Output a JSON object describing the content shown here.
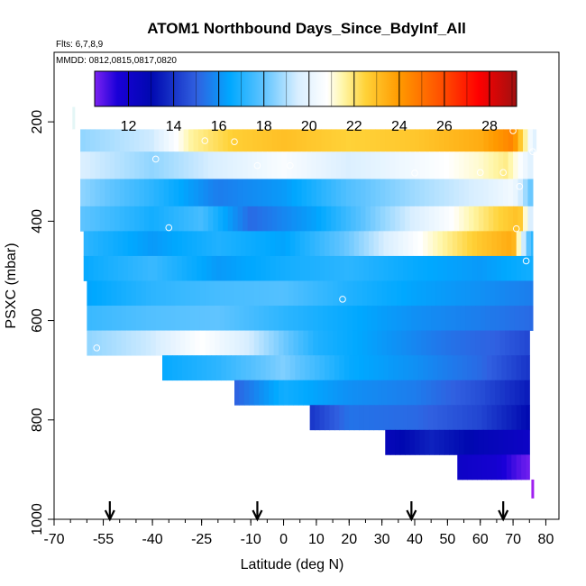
{
  "chart_data": {
    "type": "heatmap",
    "title": "ATOM1 Northbound Days_Since_BdyInf_All",
    "flights_note": "Flts: 6,7,8,9",
    "dates_note": "MMDD: 0812,0815,0817,0820",
    "xlabel": "Latitude (deg N)",
    "ylabel": "PSXC (mbar)",
    "xlim": [
      -70,
      84
    ],
    "ylim": [
      1000,
      60
    ],
    "x_ticks": [
      -70,
      -55,
      -40,
      -25,
      -10,
      0,
      10,
      20,
      30,
      40,
      50,
      60,
      70,
      80
    ],
    "x_tick_labels": [
      "-70",
      "-55",
      "-40",
      "-25",
      "-10",
      "0",
      "10",
      "20",
      "30",
      "40",
      "50",
      "60",
      "70",
      "80"
    ],
    "y_ticks": [
      200,
      400,
      600,
      800,
      1000
    ],
    "y_tick_labels": [
      "200",
      "400",
      "600",
      "800",
      "1000"
    ],
    "colorbar": {
      "min": 10.5,
      "max": 29.2,
      "ticks": [
        12,
        14,
        16,
        18,
        20,
        22,
        24,
        26,
        28
      ],
      "tick_labels": [
        "12",
        "14",
        "16",
        "18",
        "20",
        "22",
        "24",
        "26",
        "28"
      ],
      "stops": [
        {
          "value": 10.5,
          "color": "#7c22f2"
        },
        {
          "value": 11.5,
          "color": "#1a00d8"
        },
        {
          "value": 13.0,
          "color": "#0008b0"
        },
        {
          "value": 15.0,
          "color": "#3060e0"
        },
        {
          "value": 16.5,
          "color": "#00a8ff"
        },
        {
          "value": 18.0,
          "color": "#60c4ff"
        },
        {
          "value": 19.5,
          "color": "#d8eeff"
        },
        {
          "value": 20.8,
          "color": "#ffffff"
        },
        {
          "value": 21.5,
          "color": "#fff6a8"
        },
        {
          "value": 22.5,
          "color": "#ffd238"
        },
        {
          "value": 24.0,
          "color": "#ff9a00"
        },
        {
          "value": 26.0,
          "color": "#ff4a00"
        },
        {
          "value": 27.5,
          "color": "#ff0000"
        },
        {
          "value": 29.2,
          "color": "#a01010"
        }
      ]
    },
    "pressure_levels": [
      {
        "p_top": 215,
        "p_bottom": 260,
        "lat_start": -62,
        "lat_end": 77,
        "knots": [
          [
            -62,
            18.6
          ],
          [
            -40,
            19.4
          ],
          [
            -28,
            21.6
          ],
          [
            -15,
            22.6
          ],
          [
            0,
            23.0
          ],
          [
            20,
            22.5
          ],
          [
            40,
            22.8
          ],
          [
            60,
            23.5
          ],
          [
            70,
            24.6
          ],
          [
            76,
            19.8
          ]
        ]
      },
      {
        "p_top": 260,
        "p_bottom": 315,
        "lat_start": -62,
        "lat_end": 76,
        "knots": [
          [
            -62,
            19.6
          ],
          [
            -40,
            18.6
          ],
          [
            -20,
            19.6
          ],
          [
            0,
            20.6
          ],
          [
            20,
            19.6
          ],
          [
            40,
            20.4
          ],
          [
            60,
            21.2
          ],
          [
            68,
            21.8
          ],
          [
            76,
            19.6
          ]
        ]
      },
      {
        "p_top": 315,
        "p_bottom": 370,
        "lat_start": -62,
        "lat_end": 76,
        "knots": [
          [
            -62,
            18.6
          ],
          [
            -40,
            17.2
          ],
          [
            -20,
            15.6
          ],
          [
            0,
            16.2
          ],
          [
            20,
            17.8
          ],
          [
            40,
            18.8
          ],
          [
            60,
            19.6
          ],
          [
            70,
            20.4
          ],
          [
            76,
            17.8
          ]
        ]
      },
      {
        "p_top": 370,
        "p_bottom": 420,
        "lat_start": -62,
        "lat_end": 76,
        "knots": [
          [
            -62,
            18.0
          ],
          [
            -40,
            16.8
          ],
          [
            -25,
            17.6
          ],
          [
            -10,
            15.2
          ],
          [
            10,
            16.4
          ],
          [
            30,
            18.6
          ],
          [
            50,
            20.6
          ],
          [
            65,
            22.4
          ],
          [
            72,
            23.0
          ],
          [
            76,
            18.8
          ]
        ]
      },
      {
        "p_top": 420,
        "p_bottom": 470,
        "lat_start": -61,
        "lat_end": 76,
        "knots": [
          [
            -61,
            17.2
          ],
          [
            -40,
            16.2
          ],
          [
            -20,
            17.0
          ],
          [
            0,
            16.4
          ],
          [
            20,
            18.2
          ],
          [
            40,
            20.6
          ],
          [
            60,
            22.8
          ],
          [
            70,
            23.6
          ],
          [
            74,
            18.4
          ],
          [
            76,
            17.0
          ]
        ]
      },
      {
        "p_top": 470,
        "p_bottom": 520,
        "lat_start": -61,
        "lat_end": 76,
        "knots": [
          [
            -61,
            16.6
          ],
          [
            -40,
            17.4
          ],
          [
            -20,
            16.2
          ],
          [
            0,
            16.8
          ],
          [
            20,
            17.2
          ],
          [
            40,
            16.6
          ],
          [
            60,
            16.2
          ],
          [
            76,
            16.8
          ]
        ]
      },
      {
        "p_top": 520,
        "p_bottom": 570,
        "lat_start": -60,
        "lat_end": 76,
        "knots": [
          [
            -60,
            16.4
          ],
          [
            -40,
            17.2
          ],
          [
            -20,
            17.6
          ],
          [
            0,
            17.8
          ],
          [
            20,
            17.0
          ],
          [
            40,
            16.4
          ],
          [
            60,
            16.0
          ],
          [
            76,
            15.6
          ]
        ]
      },
      {
        "p_top": 570,
        "p_bottom": 620,
        "lat_start": -60,
        "lat_end": 76,
        "knots": [
          [
            -60,
            17.4
          ],
          [
            -40,
            17.8
          ],
          [
            -20,
            18.0
          ],
          [
            0,
            17.2
          ],
          [
            20,
            16.6
          ],
          [
            40,
            16.0
          ],
          [
            60,
            15.6
          ],
          [
            76,
            15.2
          ]
        ]
      },
      {
        "p_top": 620,
        "p_bottom": 670,
        "lat_start": -60,
        "lat_end": 75,
        "knots": [
          [
            -60,
            18.6
          ],
          [
            -40,
            19.4
          ],
          [
            -25,
            20.8
          ],
          [
            -10,
            19.4
          ],
          [
            10,
            17.0
          ],
          [
            30,
            16.2
          ],
          [
            50,
            15.4
          ],
          [
            65,
            15.0
          ],
          [
            75,
            14.4
          ]
        ]
      },
      {
        "p_top": 670,
        "p_bottom": 720,
        "lat_start": -37,
        "lat_end": 75,
        "knots": [
          [
            -37,
            16.6
          ],
          [
            -20,
            17.2
          ],
          [
            0,
            18.4
          ],
          [
            20,
            16.6
          ],
          [
            40,
            16.0
          ],
          [
            60,
            15.2
          ],
          [
            75,
            14.0
          ]
        ]
      },
      {
        "p_top": 720,
        "p_bottom": 770,
        "lat_start": -15,
        "lat_end": 75,
        "knots": [
          [
            -15,
            15.0
          ],
          [
            0,
            16.8
          ],
          [
            20,
            16.0
          ],
          [
            40,
            15.6
          ],
          [
            60,
            14.6
          ],
          [
            75,
            13.4
          ]
        ]
      },
      {
        "p_top": 770,
        "p_bottom": 820,
        "lat_start": 8,
        "lat_end": 75,
        "knots": [
          [
            8,
            14.0
          ],
          [
            20,
            15.4
          ],
          [
            40,
            15.2
          ],
          [
            60,
            14.4
          ],
          [
            75,
            13.0
          ]
        ]
      },
      {
        "p_top": 820,
        "p_bottom": 870,
        "lat_start": 31,
        "lat_end": 75,
        "knots": [
          [
            31,
            12.6
          ],
          [
            45,
            13.6
          ],
          [
            60,
            12.8
          ],
          [
            75,
            12.2
          ]
        ]
      },
      {
        "p_top": 870,
        "p_bottom": 920,
        "lat_start": 53,
        "lat_end": 75,
        "knots": [
          [
            53,
            12.2
          ],
          [
            65,
            11.8
          ],
          [
            72,
            10.9
          ],
          [
            75,
            10.6
          ]
        ]
      }
    ],
    "open_circles": [
      {
        "lat": -57,
        "p": 655
      },
      {
        "lat": -39,
        "p": 275
      },
      {
        "lat": -35,
        "p": 413
      },
      {
        "lat": -24,
        "p": 238
      },
      {
        "lat": -15,
        "p": 240
      },
      {
        "lat": -8,
        "p": 288
      },
      {
        "lat": 2,
        "p": 288
      },
      {
        "lat": 18,
        "p": 557
      },
      {
        "lat": 40,
        "p": 303
      },
      {
        "lat": 60,
        "p": 302
      },
      {
        "lat": 67,
        "p": 302
      },
      {
        "lat": 70,
        "p": 218
      },
      {
        "lat": 71,
        "p": 415
      },
      {
        "lat": 72,
        "p": 330
      },
      {
        "lat": 74,
        "p": 480
      },
      {
        "lat": 76,
        "p": 260
      }
    ],
    "arrows_at_lat": [
      -53,
      -8,
      39,
      67
    ],
    "edge_markers": [
      {
        "lat": -64,
        "p_from": 170,
        "p_to": 215,
        "color": "#e4f6f6"
      },
      {
        "lat": 76,
        "p_from": 920,
        "p_to": 958,
        "color": "#a020f0"
      }
    ]
  }
}
